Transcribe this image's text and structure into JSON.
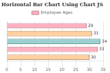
{
  "chart_data": {
    "type": "bar",
    "title": "Horizontal Bar Chart Using Chart JS",
    "orientation": "horizontal",
    "categories": [
      null,
      null,
      null,
      null,
      null
    ],
    "series": [
      {
        "name": "Employee Ages",
        "values": [
          29,
          31,
          34,
          33,
          30
        ]
      }
    ],
    "colors": [
      "#ffb1c1",
      "#ffcf9f",
      "#9ad0d0",
      "#ffb1c1",
      "#ffcf9f"
    ],
    "xlim": [
      0,
      35
    ],
    "xticks": [
      0,
      5,
      10,
      15,
      20,
      25,
      30,
      35
    ],
    "grid": true,
    "legend": "top",
    "data_labels": true,
    "tick_labels": "x"
  }
}
